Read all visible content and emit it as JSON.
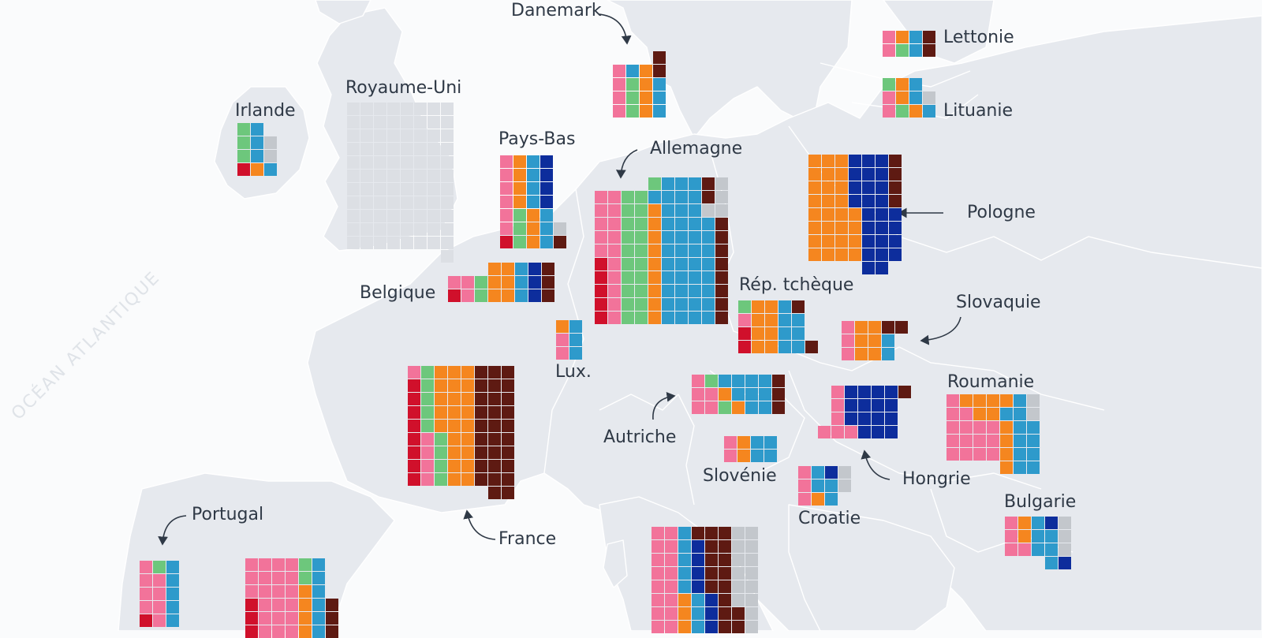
{
  "ocean_label": "OCÉAN ATLANTIQUE",
  "colors": {
    "p": "#f2739a",
    "r": "#d0102b",
    "g": "#6dc77c",
    "o": "#f5861f",
    "b": "#2e9acb",
    "n": "#0d2d9c",
    "m": "#5e1a12",
    "x": "#c3c7cc",
    "u": "#dcdfe4"
  },
  "countries": [
    {
      "key": "irlande",
      "label": "Irlande",
      "rows": [
        "gb",
        "gbx",
        "gbx",
        "rob"
      ]
    },
    {
      "key": "royaume-uni",
      "label": "Royaume-Uni",
      "rows": [
        "uuuuuuuu",
        "uuuuuuuu",
        "uuuuuuuu",
        "uuuuuuuu",
        "uuuuuuuu",
        "uuuuuuuu",
        "uuuuuuuu",
        "uuuuuuuu",
        "uuuuuuuu",
        "uuuuuuuu",
        "uuuuuuuu",
        "-------u"
      ]
    },
    {
      "key": "danemark",
      "label": "Danemark",
      "rows": [
        "---m",
        "pbom",
        "pgob",
        "pgob",
        "pgob"
      ]
    },
    {
      "key": "pays-bas",
      "label": "Pays-Bas",
      "rows": [
        "pobn",
        "pobn",
        "pobn",
        "pobn",
        "pgob",
        "pgobx",
        "rgobm"
      ]
    },
    {
      "key": "allemagne",
      "label": "Allemagne",
      "rows": [
        "----gbbbmx",
        "ppggbbbbmx",
        "ppggobbbxx",
        "ppggobbbbm",
        "ppggobbbbm",
        "ppggobbbbm",
        "rpggobbbbm",
        "rpggobbbbm",
        "rpggobbbbm",
        "rpggobbbbm",
        "rpggobbbbm"
      ]
    },
    {
      "key": "lettonie",
      "label": "Lettonie",
      "rows": [
        "pobm",
        "pgbm"
      ]
    },
    {
      "key": "lituanie",
      "label": "Lituanie",
      "rows": [
        "gob",
        "pobx",
        "pgob"
      ]
    },
    {
      "key": "pologne",
      "label": "Pologne",
      "rows": [
        "ooonnnm",
        "ooonnnm",
        "ooonnnm",
        "ooonnnm",
        "oooonnn",
        "oooonnn",
        "oooonnn",
        "oooonnn",
        "----nn"
      ]
    },
    {
      "key": "belgique",
      "label": "Belgique",
      "rows": [
        "---oobnm",
        "ppgoobnm",
        "rpgoobnm"
      ]
    },
    {
      "key": "lux",
      "label": "Lux.",
      "rows": [
        "ob",
        "pb",
        "pb"
      ]
    },
    {
      "key": "rep-tcheque",
      "label": "Rép. tchèque",
      "rows": [
        "goobm",
        "poobb",
        "roobb",
        "roobbm"
      ]
    },
    {
      "key": "slovaquie",
      "label": "Slovaquie",
      "rows": [
        "poomm",
        "poob",
        "poob"
      ]
    },
    {
      "key": "france",
      "label": "France",
      "rows": [
        "pgooommm",
        "rgooommm",
        "rgooommm",
        "rgooommm",
        "rgooommm",
        "rpgoommm",
        "rpgoommm",
        "rpgoommm",
        "rpgoommm",
        "------mm"
      ]
    },
    {
      "key": "autriche",
      "label": "Autriche",
      "rows": [
        "pgbbbbm",
        "ppobbbm",
        "ppgobbm"
      ]
    },
    {
      "key": "slovenie",
      "label": "Slovénie",
      "rows": [
        "pobb",
        "pobb"
      ]
    },
    {
      "key": "hongrie",
      "label": "Hongrie",
      "rows": [
        "-pnnnnm",
        "-pnnnn",
        "-pnnnn",
        "pppnnn"
      ]
    },
    {
      "key": "croatie",
      "label": "Croatie",
      "rows": [
        "pbnx",
        "pbbx",
        "pob"
      ]
    },
    {
      "key": "roumanie",
      "label": "Roumanie",
      "rows": [
        "poooobx",
        "ppoobbx",
        "ppppobb",
        "ppppobb",
        "ppppobb",
        "----obb"
      ]
    },
    {
      "key": "bulgarie",
      "label": "Bulgarie",
      "rows": [
        "pobnx",
        "pobbx",
        "ppbbx",
        "---bn"
      ]
    },
    {
      "key": "portugal",
      "label": "Portugal",
      "rows": [
        "pgb",
        "ppb",
        "ppb",
        "ppb",
        "rpb"
      ]
    },
    {
      "key": "espagne",
      "label": "",
      "rows": [
        "ppppgb",
        "ppppgb",
        "ppppob",
        "rpppobm",
        "rpppobm",
        "rpppobm"
      ]
    },
    {
      "key": "italie",
      "label": "",
      "rows": [
        "ppbmmmxx",
        "ppbnmmxx",
        "ppbnmmxx",
        "ppbnmmxx",
        "ppbnmmxx",
        "ppobnmxx",
        "ppobnmmx",
        "ppobnmmx"
      ]
    }
  ]
}
